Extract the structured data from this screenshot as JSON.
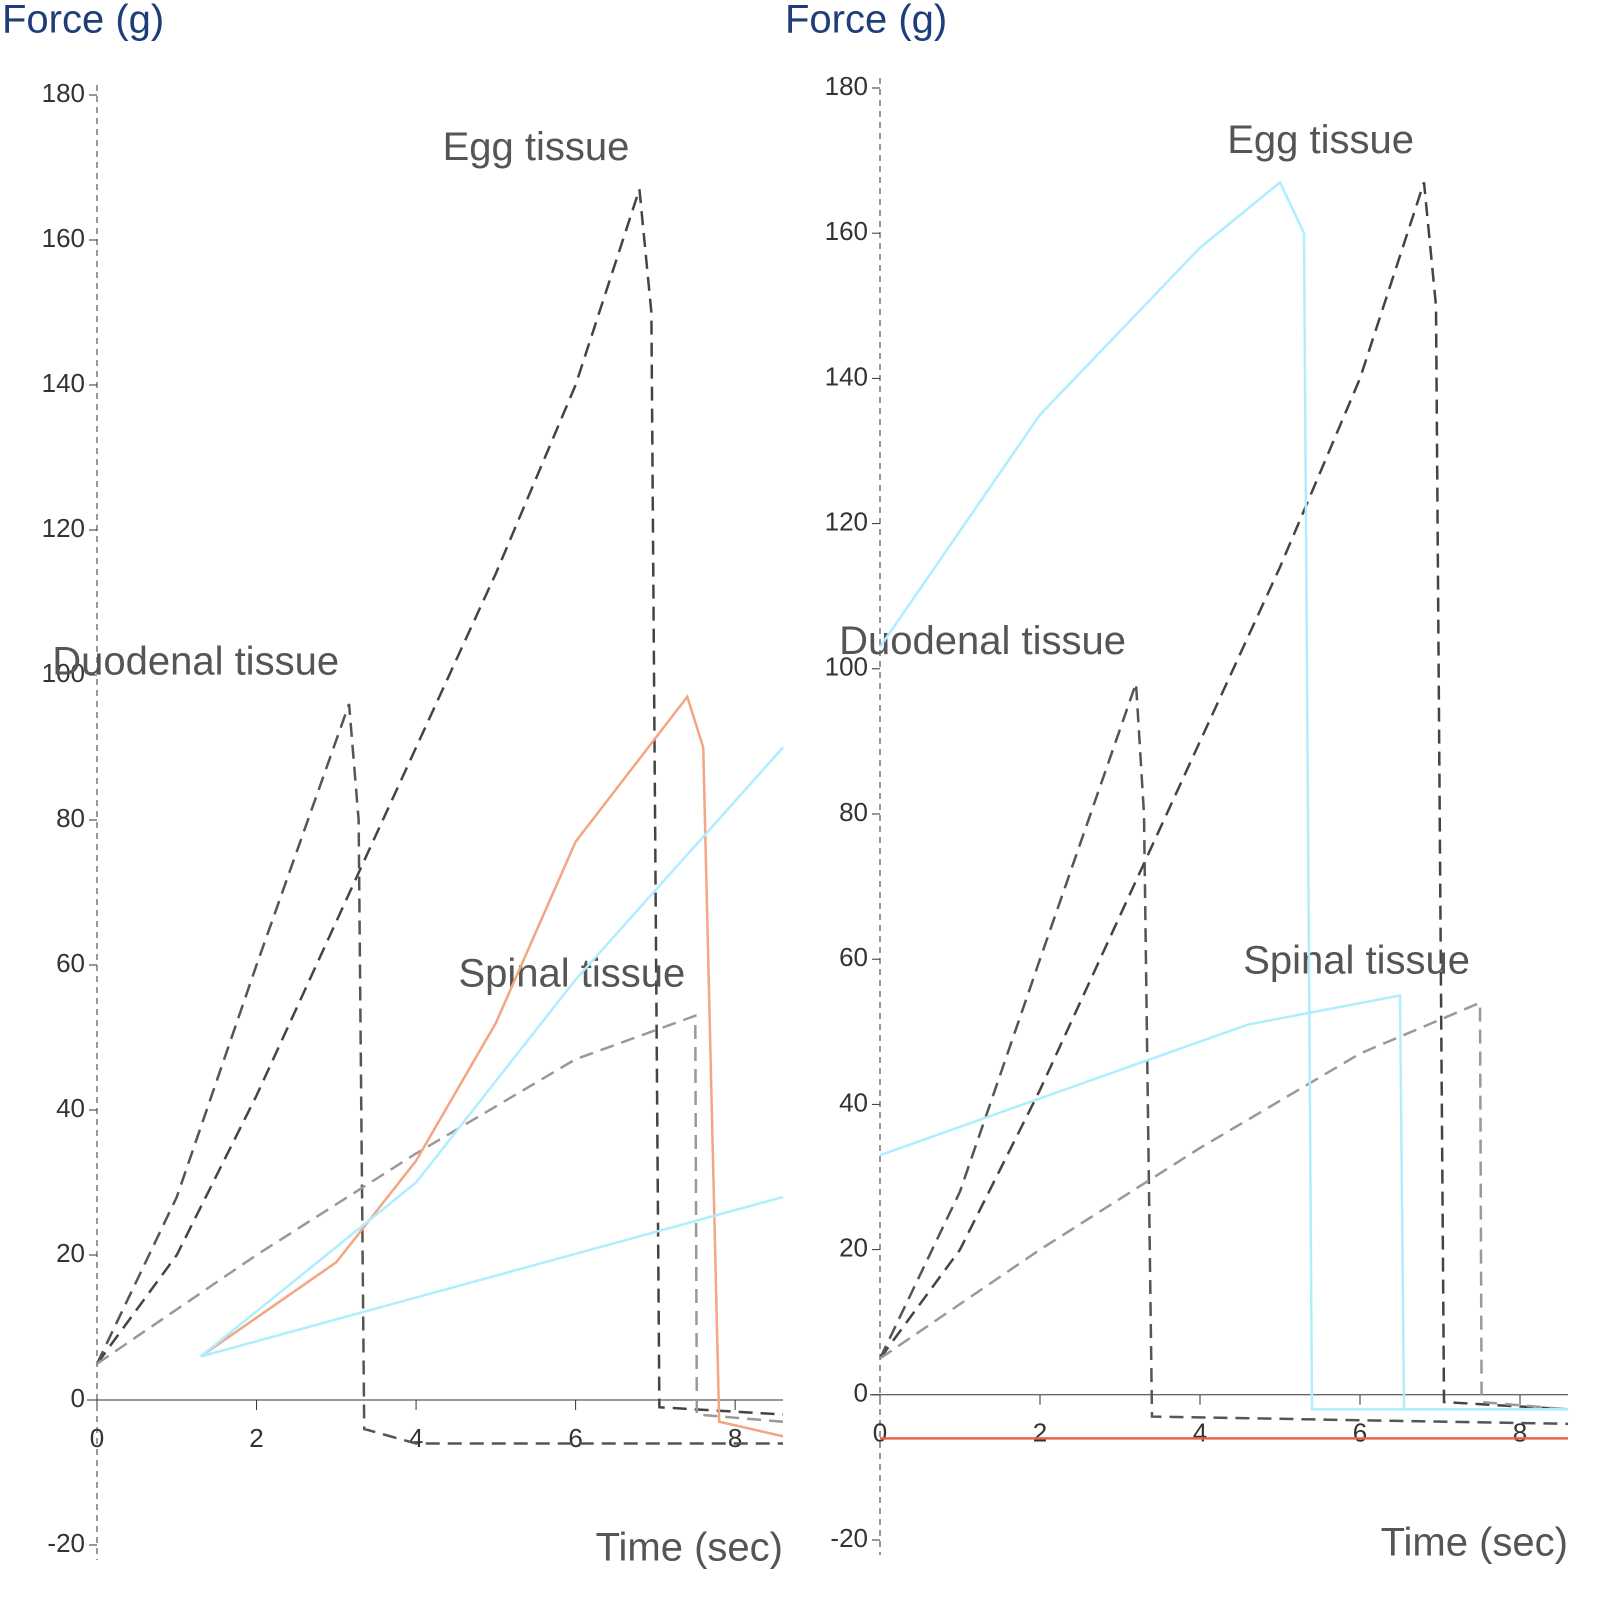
{
  "chart_data": [
    {
      "type": "line",
      "ylabel": "Force (g)",
      "xlabel": "Time (sec)",
      "xlim": [
        0,
        8.6
      ],
      "ylim": [
        -20,
        180
      ],
      "xticks": [
        0,
        2,
        4,
        6,
        8
      ],
      "yticks": [
        -20,
        0,
        20,
        40,
        60,
        80,
        100,
        120,
        140,
        160,
        180
      ],
      "series": [
        {
          "name": "Egg tissue",
          "color": "#444444",
          "dashed": true,
          "x": [
            0,
            1,
            2,
            3,
            4,
            5,
            6,
            6.8,
            6.95,
            7.05,
            8.6
          ],
          "values": [
            5,
            20,
            42,
            66,
            90,
            114,
            140,
            167,
            150,
            -1,
            -2
          ]
        },
        {
          "name": "Duodenal tissue",
          "color": "#555555",
          "dashed": true,
          "x": [
            0,
            1,
            2,
            3.16,
            3.28,
            3.35,
            4,
            8.6
          ],
          "values": [
            5,
            28,
            60,
            96,
            80,
            -4,
            -6,
            -6
          ]
        },
        {
          "name": "Spinal tissue",
          "color": "#999999",
          "dashed": true,
          "x": [
            0,
            2,
            4,
            6,
            7.5,
            7.52,
            8.6
          ],
          "values": [
            5,
            20,
            34,
            47,
            53,
            -2,
            -3
          ]
        },
        {
          "color": "#f4a582",
          "dashed": false,
          "x": [
            1.3,
            3,
            4,
            5,
            6,
            7.4,
            7.6,
            7.8,
            8.6
          ],
          "values": [
            6,
            19,
            33,
            52,
            77,
            97,
            90,
            -3,
            -5
          ]
        },
        {
          "color": "#aeeeff",
          "dashed": false,
          "x": [
            1.3,
            4,
            6,
            8.6
          ],
          "values": [
            6,
            30,
            58,
            90
          ]
        },
        {
          "color": "#aeeeff",
          "dashed": false,
          "x": [
            1.3,
            8.6
          ],
          "values": [
            6,
            28
          ]
        }
      ]
    },
    {
      "type": "line",
      "ylabel": "Force (g)",
      "xlabel": "Time (sec)",
      "xlim": [
        0,
        8.6
      ],
      "ylim": [
        -20,
        180
      ],
      "xticks": [
        0,
        2,
        4,
        6,
        8
      ],
      "yticks": [
        -20,
        0,
        20,
        40,
        60,
        80,
        100,
        120,
        140,
        160,
        180
      ],
      "series": [
        {
          "name": "Egg tissue",
          "color": "#444444",
          "dashed": true,
          "x": [
            0,
            1,
            2,
            3,
            4,
            5,
            6,
            6.8,
            6.95,
            7.05,
            8.6
          ],
          "values": [
            5,
            20,
            42,
            66,
            90,
            114,
            140,
            167,
            150,
            -1,
            -2
          ]
        },
        {
          "name": "Duodenal tissue",
          "color": "#555555",
          "dashed": true,
          "x": [
            0,
            1,
            2,
            3.2,
            3.3,
            3.4,
            8.6
          ],
          "values": [
            5,
            28,
            60,
            98,
            80,
            -3,
            -4
          ]
        },
        {
          "name": "Spinal tissue",
          "color": "#999999",
          "dashed": true,
          "x": [
            0,
            2,
            4,
            6,
            7.5,
            7.52,
            8.6
          ],
          "values": [
            5,
            20,
            34,
            47,
            54,
            -1,
            -2
          ]
        },
        {
          "color": "#aeeeff",
          "dashed": false,
          "x": [
            0,
            2,
            4,
            5,
            5.3,
            5.4,
            8.6
          ],
          "values": [
            103,
            135,
            158,
            167,
            160,
            -2,
            -2
          ]
        },
        {
          "color": "#aeeeff",
          "dashed": false,
          "x": [
            0,
            4.6,
            6.5,
            6.55,
            8.6
          ],
          "values": [
            33,
            51,
            55,
            -2,
            -2
          ]
        },
        {
          "color": "#e8654a",
          "dashed": false,
          "x": [
            0,
            8.6
          ],
          "values": [
            -6,
            -6
          ]
        }
      ]
    }
  ]
}
